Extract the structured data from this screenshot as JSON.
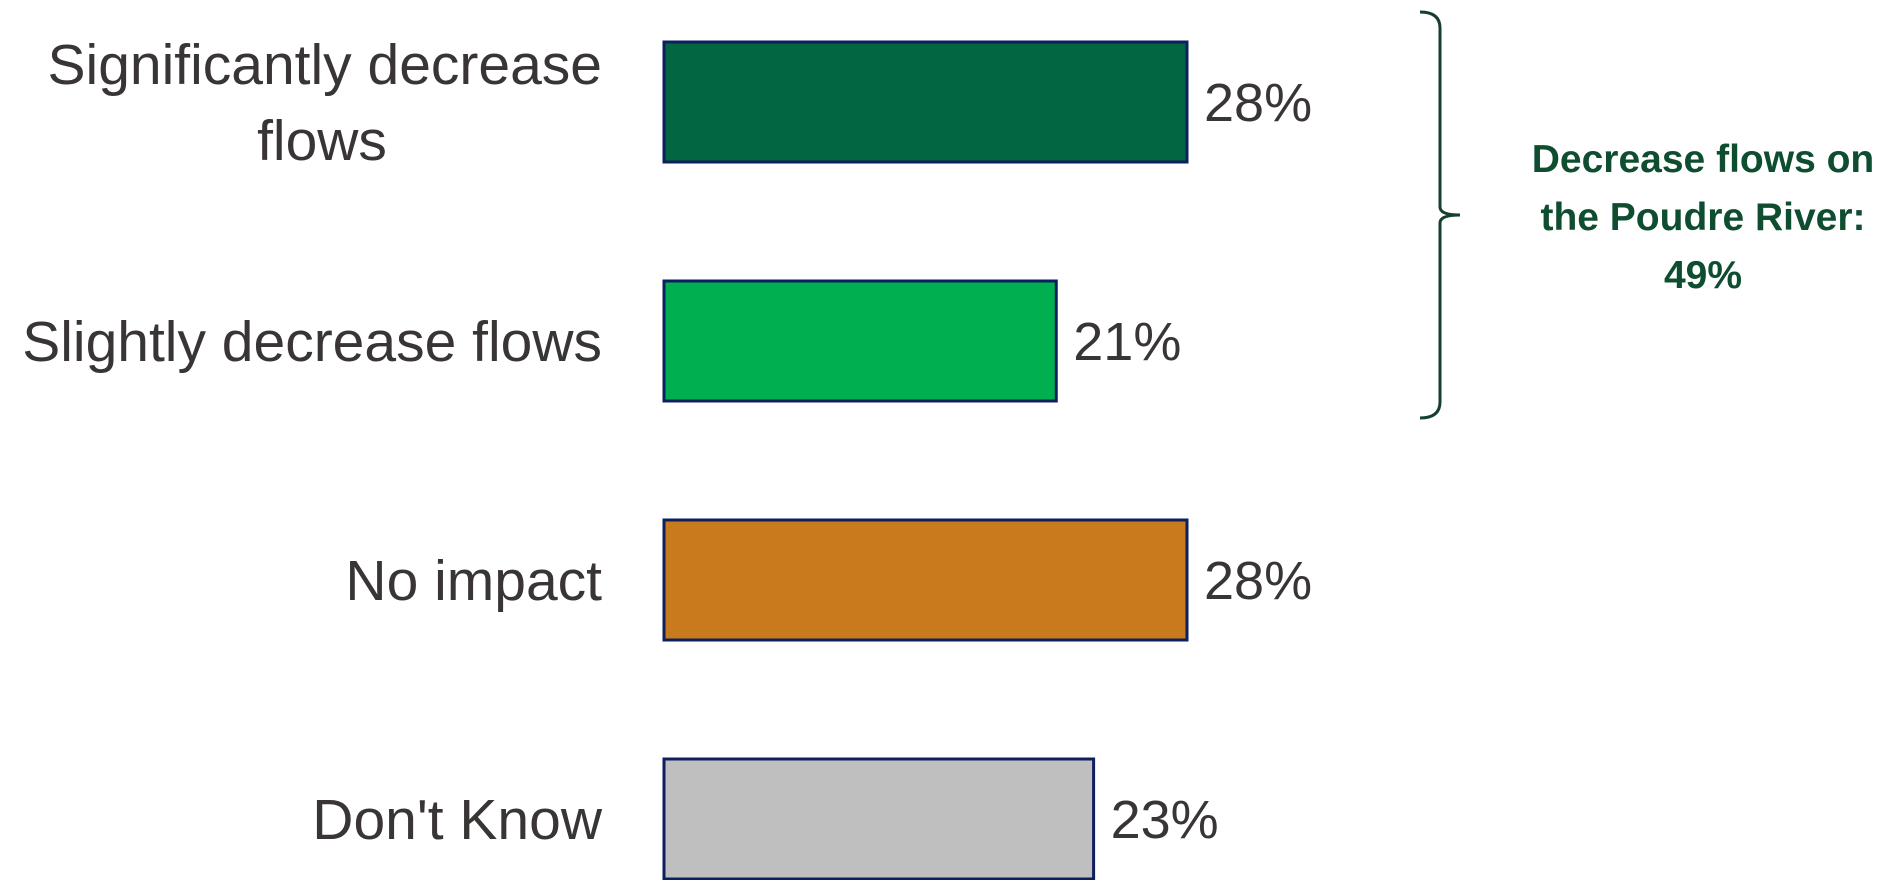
{
  "chart_data": {
    "type": "bar",
    "orientation": "horizontal",
    "categories": [
      [
        "Significantly decrease",
        "flows"
      ],
      [
        "Slightly decrease flows"
      ],
      [
        "No impact"
      ],
      [
        "Don't Know"
      ]
    ],
    "values": [
      28,
      21,
      28,
      23
    ],
    "value_labels": [
      "28%",
      "21%",
      "28%",
      "23%"
    ],
    "colors": [
      "#026642",
      "#00b050",
      "#c87a1c",
      "#bfbfbf"
    ],
    "bar_border_color": "#0d1f5c",
    "grid": false,
    "legend": "none",
    "annotation": {
      "lines": [
        "Decrease flows on",
        "the Poudre River:",
        "49%"
      ],
      "color": "#0e4d30",
      "brackets_categories": [
        0,
        1
      ]
    }
  }
}
